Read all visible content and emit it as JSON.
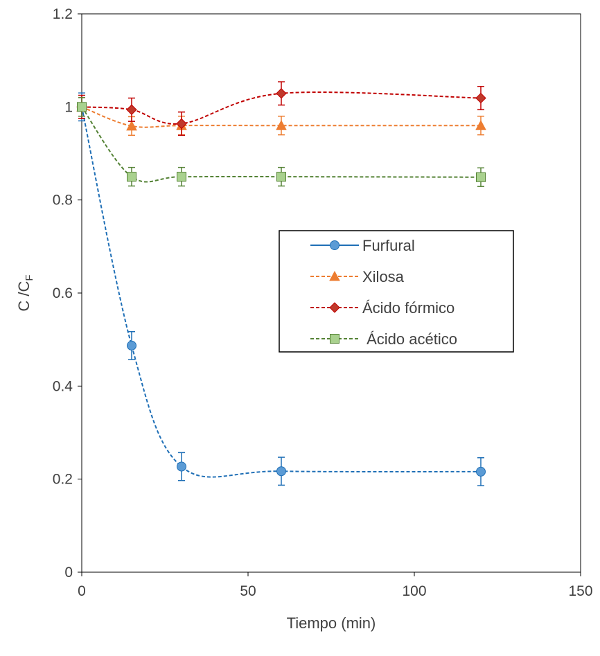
{
  "chart_data": {
    "type": "line",
    "xlabel": "Tiempo (min)",
    "ylabel": {
      "main": "C /C",
      "sub": "F"
    },
    "xlim": [
      0,
      150
    ],
    "ylim": [
      0,
      1.2
    ],
    "xticks": [
      "0",
      "50",
      "100",
      "150"
    ],
    "yticks": [
      "0",
      "0.2",
      "0.4",
      "0.6",
      "0.8",
      "1",
      "1.2"
    ],
    "grid": false,
    "legend_position": "right-middle",
    "x": [
      0,
      15,
      30,
      60,
      120
    ],
    "series": [
      {
        "name": "Furfural",
        "color": "#1f6fb6",
        "marker_color": "#5b9bd5",
        "marker": "circle",
        "values": [
          1.0,
          0.487,
          0.227,
          0.217,
          0.216
        ],
        "errors": [
          0.03,
          0.03,
          0.03,
          0.03,
          0.03
        ]
      },
      {
        "name": "Xilosa",
        "color": "#ed7d31",
        "marker_color": "#ed7d31",
        "marker": "triangle",
        "values": [
          1.0,
          0.959,
          0.96,
          0.96,
          0.96
        ],
        "errors": [
          0.02,
          0.02,
          0.02,
          0.02,
          0.02
        ]
      },
      {
        "name": "Ácido fórmico",
        "color": "#c00000",
        "marker_color": "#c0392b",
        "marker": "diamond",
        "values": [
          1.0,
          0.994,
          0.964,
          1.029,
          1.019
        ],
        "errors": [
          0.025,
          0.025,
          0.025,
          0.025,
          0.025
        ]
      },
      {
        "name": " Ácido acético",
        "color": "#548235",
        "marker_color": "#a9d18e",
        "marker": "square",
        "values": [
          1.0,
          0.85,
          0.85,
          0.85,
          0.849
        ],
        "errors": [
          0.02,
          0.02,
          0.02,
          0.02,
          0.02
        ]
      }
    ]
  }
}
